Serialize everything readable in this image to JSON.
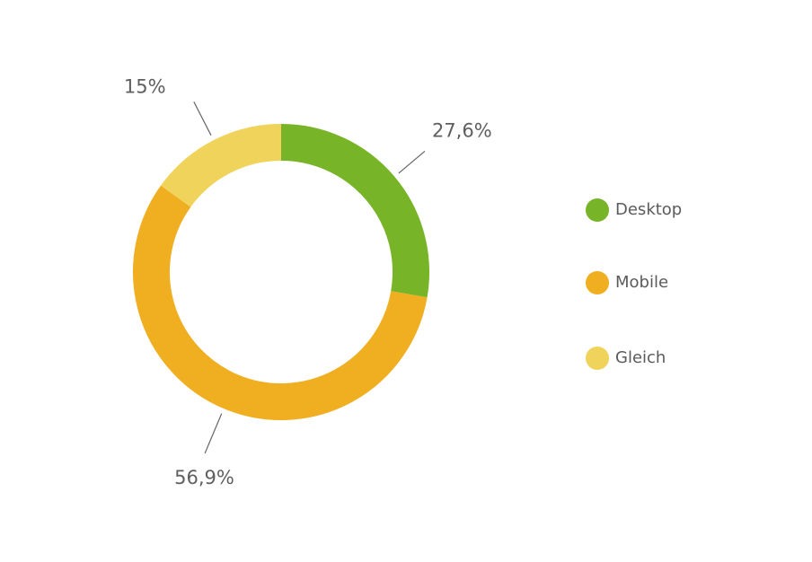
{
  "chart_data": {
    "type": "pie",
    "variant": "donut",
    "start_angle_deg": 0,
    "direction": "clockwise",
    "slices": [
      {
        "name": "Desktop",
        "value": 27.6,
        "label": "27,6%",
        "color": "#78b428"
      },
      {
        "name": "Mobile",
        "value": 56.9,
        "label": "56,9%",
        "color": "#f0ae21"
      },
      {
        "name": "Gleich",
        "value": 15,
        "label": "15%",
        "color": "#f0d35a"
      }
    ],
    "legend": {
      "position": "right",
      "entries": [
        "Desktop",
        "Mobile",
        "Gleich"
      ]
    }
  }
}
